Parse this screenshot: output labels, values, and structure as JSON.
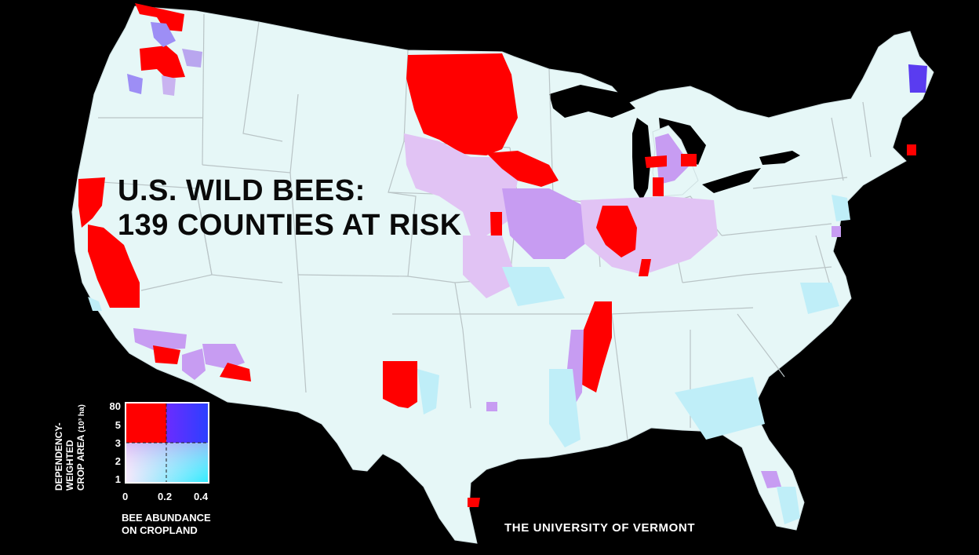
{
  "title": {
    "line1": "U.S. WILD BEES:",
    "line2": "139 COUNTIES AT RISK"
  },
  "legend": {
    "y_label_line1": "DEPENDENCY-",
    "y_label_line2": "WEIGHTED",
    "y_label_line3": "CROP AREA",
    "y_label_units": "(10³ ha)",
    "y_ticks": [
      "80",
      "5",
      "3",
      "2",
      "1"
    ],
    "x_ticks": [
      "0",
      "0.2",
      "0.4"
    ],
    "x_label_line1": "BEE ABUNDANCE",
    "x_label_line2": "ON CROPLAND"
  },
  "credit": "THE UNIVERSITY OF VERMONT",
  "colors": {
    "background": "#000000",
    "land": "#e6f7f7",
    "border": "#b9c4c6",
    "at_risk": "#ff0000",
    "high_dependency_high_bees": "#3a2cff",
    "mid_purple": "#c79cf2",
    "light_purple": "#e7c8f3",
    "light_blue": "#bfeef8",
    "cyan": "#55e8ff"
  }
}
